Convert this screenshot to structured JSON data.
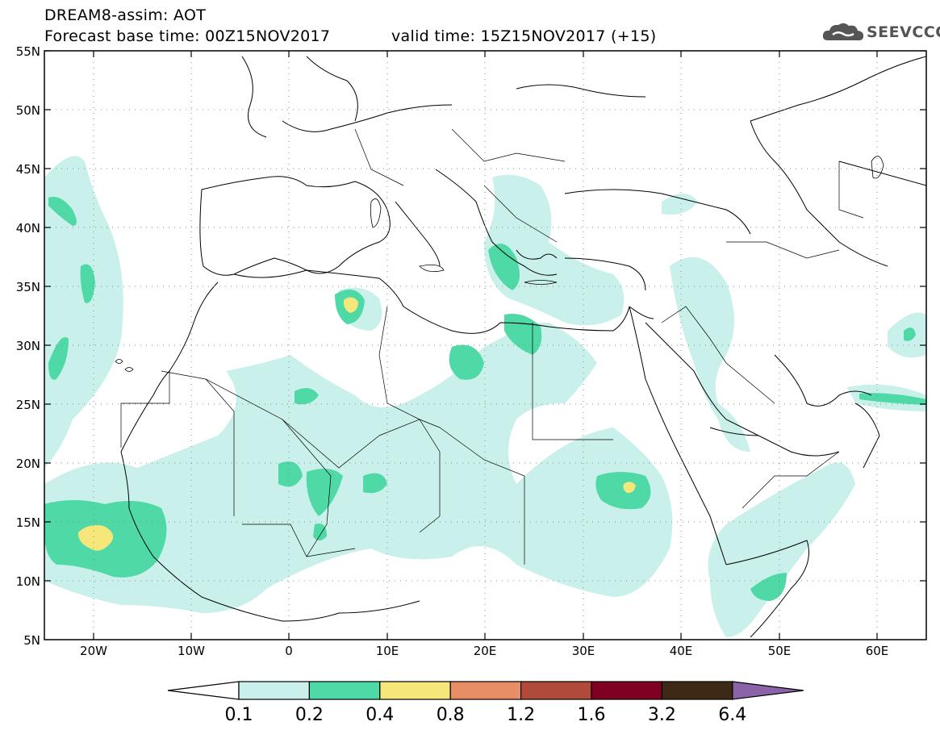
{
  "header": {
    "title": "DREAM8-assim: AOT",
    "base_time": "Forecast base time: 00Z15NOV2017",
    "valid_time": "valid time: 15Z15NOV2017 (+15)"
  },
  "logo": {
    "text": "SEEVCCC",
    "icon": "cloud-icon"
  },
  "map": {
    "lat_labels": [
      "55N",
      "50N",
      "45N",
      "40N",
      "35N",
      "30N",
      "25N",
      "20N",
      "15N",
      "10N",
      "5N"
    ],
    "lon_labels": [
      "20W",
      "10W",
      "0",
      "10E",
      "20E",
      "30E",
      "40E",
      "50E",
      "60E"
    ],
    "grid": "dotted",
    "variable": "AOT"
  },
  "colorbar": {
    "labels": [
      "0.1",
      "0.2",
      "0.4",
      "0.8",
      "1.2",
      "1.6",
      "3.2",
      "6.4"
    ],
    "colors": [
      "#c9f0ea",
      "#4fd9a6",
      "#f5e77a",
      "#e88e66",
      "#b04a3b",
      "#800021",
      "#3e2816",
      "#8a63a8"
    ]
  },
  "colors": {
    "level1": "#c9f0ea",
    "level2": "#4fd9a6",
    "level3": "#f5e77a"
  }
}
